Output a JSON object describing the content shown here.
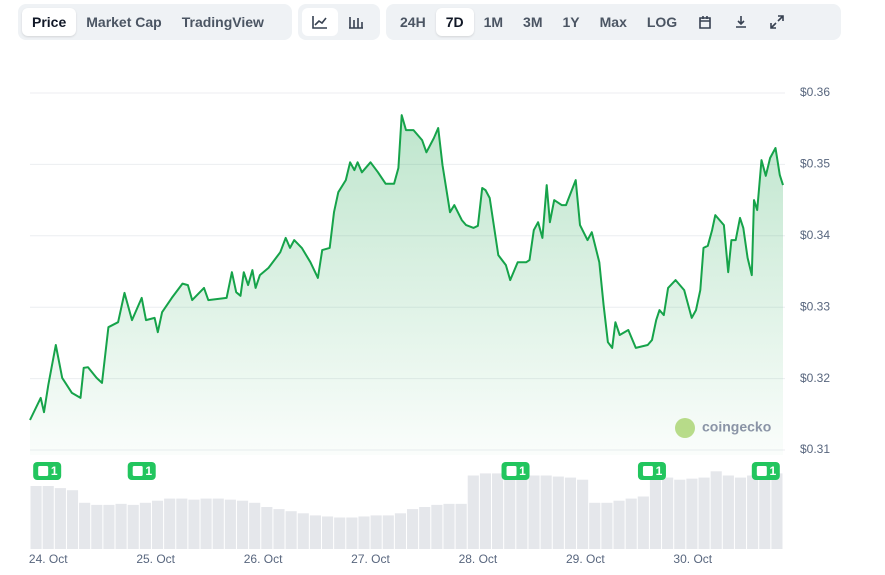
{
  "toolbar": {
    "tabs": [
      "Price",
      "Market Cap",
      "TradingView"
    ],
    "active_tab": 0,
    "ranges": [
      "24H",
      "7D",
      "1M",
      "3M",
      "1Y",
      "Max",
      "LOG"
    ],
    "active_range": 1
  },
  "chart_data": {
    "type": "line",
    "xlim": [
      -0.17,
      6.84
    ],
    "xticks": [
      {
        "value": 0,
        "label": "24. Oct"
      },
      {
        "value": 1,
        "label": "25. Oct"
      },
      {
        "value": 2,
        "label": "26. Oct"
      },
      {
        "value": 3,
        "label": "27. Oct"
      },
      {
        "value": 4,
        "label": "28. Oct"
      },
      {
        "value": 5,
        "label": "29. Oct"
      },
      {
        "value": 6,
        "label": "30. Oct"
      }
    ],
    "ylim": [
      0.31,
      0.36
    ],
    "yticks": [
      {
        "value": 0.31,
        "label": "$0.31"
      },
      {
        "value": 0.32,
        "label": "$0.32"
      },
      {
        "value": 0.33,
        "label": "$0.33"
      },
      {
        "value": 0.34,
        "label": "$0.34"
      },
      {
        "value": 0.35,
        "label": "$0.35"
      },
      {
        "value": 0.36,
        "label": "$0.36"
      }
    ],
    "grid": true,
    "watermark": "coingecko",
    "x": [
      -0.17,
      -0.07,
      -0.04,
      0.0,
      0.07,
      0.13,
      0.22,
      0.3,
      0.33,
      0.37,
      0.45,
      0.5,
      0.56,
      0.65,
      0.71,
      0.78,
      0.87,
      0.91,
      0.99,
      1.02,
      1.06,
      1.15,
      1.25,
      1.3,
      1.34,
      1.45,
      1.49,
      1.66,
      1.71,
      1.75,
      1.79,
      1.82,
      1.86,
      1.9,
      1.93,
      1.97,
      2.05,
      2.16,
      2.21,
      2.25,
      2.29,
      2.36,
      2.44,
      2.51,
      2.55,
      2.62,
      2.66,
      2.7,
      2.77,
      2.81,
      2.85,
      2.88,
      2.92,
      3.0,
      3.07,
      3.14,
      3.22,
      3.26,
      3.29,
      3.33,
      3.4,
      3.48,
      3.52,
      3.59,
      3.63,
      3.67,
      3.74,
      3.78,
      3.85,
      3.89,
      3.96,
      4.0,
      4.04,
      4.07,
      4.11,
      4.19,
      4.26,
      4.3,
      4.37,
      4.45,
      4.48,
      4.52,
      4.56,
      4.6,
      4.64,
      4.67,
      4.71,
      4.78,
      4.82,
      4.91,
      4.95,
      5.02,
      5.06,
      5.13,
      5.17,
      5.21,
      5.25,
      5.28,
      5.32,
      5.4,
      5.47,
      5.58,
      5.62,
      5.66,
      5.69,
      5.73,
      5.77,
      5.84,
      5.92,
      5.99,
      6.03,
      6.07,
      6.1,
      6.14,
      6.18,
      6.21,
      6.29,
      6.33,
      6.36,
      6.4,
      6.44,
      6.47,
      6.51,
      6.55,
      6.57,
      6.6,
      6.64,
      6.68,
      6.72,
      6.77,
      6.81,
      6.84
    ],
    "series": [
      {
        "name": "Price",
        "color": "#16a34a",
        "values": [
          0.3142,
          0.3173,
          0.3153,
          0.3191,
          0.3247,
          0.3201,
          0.318,
          0.3173,
          0.3215,
          0.3216,
          0.3201,
          0.3194,
          0.3272,
          0.3279,
          0.332,
          0.3282,
          0.3313,
          0.3282,
          0.3285,
          0.3265,
          0.3293,
          0.3313,
          0.3333,
          0.3331,
          0.331,
          0.3327,
          0.331,
          0.3313,
          0.3349,
          0.3321,
          0.3316,
          0.3349,
          0.3331,
          0.3352,
          0.3327,
          0.3345,
          0.3355,
          0.3377,
          0.3397,
          0.3383,
          0.3394,
          0.3383,
          0.3363,
          0.3341,
          0.338,
          0.3383,
          0.3433,
          0.3461,
          0.3478,
          0.3503,
          0.3492,
          0.3503,
          0.3489,
          0.3503,
          0.3489,
          0.3473,
          0.3473,
          0.3495,
          0.3569,
          0.3548,
          0.3548,
          0.3534,
          0.3517,
          0.3537,
          0.3551,
          0.3499,
          0.3433,
          0.3443,
          0.3422,
          0.3415,
          0.3411,
          0.3414,
          0.3467,
          0.3464,
          0.3453,
          0.3373,
          0.3359,
          0.3338,
          0.3363,
          0.3363,
          0.3366,
          0.3408,
          0.3419,
          0.3397,
          0.3471,
          0.3419,
          0.345,
          0.3443,
          0.3443,
          0.3478,
          0.3415,
          0.3394,
          0.3405,
          0.3363,
          0.3303,
          0.3251,
          0.3243,
          0.3279,
          0.3261,
          0.3268,
          0.3243,
          0.3247,
          0.3254,
          0.3282,
          0.3296,
          0.3289,
          0.3327,
          0.3338,
          0.3324,
          0.3285,
          0.3296,
          0.3324,
          0.3383,
          0.3386,
          0.3408,
          0.3429,
          0.3415,
          0.3349,
          0.3394,
          0.3394,
          0.3425,
          0.3411,
          0.3369,
          0.3345,
          0.345,
          0.3436,
          0.3506,
          0.3484,
          0.3509,
          0.3523,
          0.3485,
          0.3471
        ]
      }
    ],
    "volume": {
      "color": "#e5e7eb",
      "values": [
        60,
        60,
        58,
        56,
        44,
        42,
        42,
        43,
        42,
        44,
        46,
        48,
        48,
        47,
        48,
        48,
        47,
        46,
        44,
        40,
        38,
        36,
        34,
        32,
        31,
        30,
        30,
        31,
        32,
        32,
        34,
        38,
        40,
        42,
        43,
        43,
        70,
        72,
        72,
        72,
        71,
        70,
        70,
        69,
        68,
        66,
        44,
        44,
        46,
        48,
        50,
        66,
        68,
        66,
        67,
        68,
        74,
        70,
        68,
        70,
        70,
        72
      ]
    },
    "events": [
      {
        "x": -0.01,
        "label": "1"
      },
      {
        "x": 0.87,
        "label": "1"
      },
      {
        "x": 4.35,
        "label": "1"
      },
      {
        "x": 5.62,
        "label": "1"
      },
      {
        "x": 6.68,
        "label": "1"
      }
    ]
  }
}
